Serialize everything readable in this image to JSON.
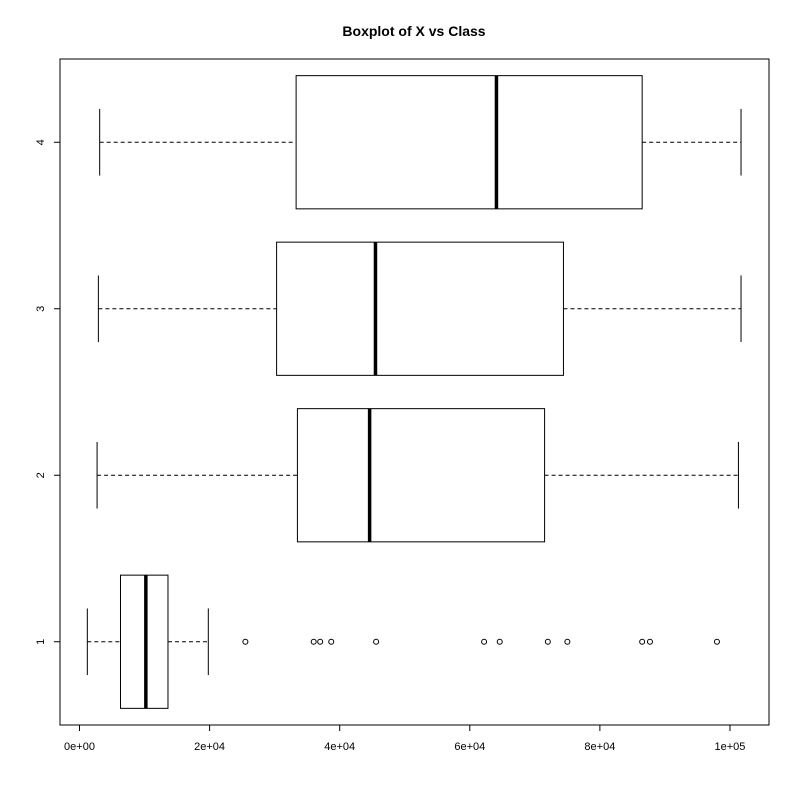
{
  "chart_data": {
    "type": "boxplot",
    "orientation": "horizontal",
    "title": "Boxplot of X vs Class",
    "xlabel": "",
    "ylabel": "",
    "xlim": [
      -3000,
      106000
    ],
    "ylim": [
      0.5,
      4.5
    ],
    "x_ticks": [
      0,
      20000,
      40000,
      60000,
      80000,
      100000
    ],
    "x_tick_labels": [
      "0e+00",
      "2e+04",
      "4e+04",
      "6e+04",
      "8e+04",
      "1e+05"
    ],
    "categories": [
      "1",
      "2",
      "3",
      "4"
    ],
    "boxes": [
      {
        "class": "1",
        "whisker_low": 1200,
        "q1": 6300,
        "median": 10200,
        "q3": 13600,
        "whisker_high": 19800,
        "outliers": [
          25500,
          36000,
          37000,
          38700,
          45600,
          62200,
          64600,
          72000,
          75000,
          86500,
          87700,
          98000
        ]
      },
      {
        "class": "2",
        "whisker_low": 2700,
        "q1": 33500,
        "median": 44600,
        "q3": 71500,
        "whisker_high": 101300,
        "outliers": []
      },
      {
        "class": "3",
        "whisker_low": 2900,
        "q1": 30300,
        "median": 45500,
        "q3": 74400,
        "whisker_high": 101700,
        "outliers": []
      },
      {
        "class": "4",
        "whisker_low": 3100,
        "q1": 33300,
        "median": 64100,
        "q3": 86500,
        "whisker_high": 101700,
        "outliers": []
      }
    ],
    "grid": false,
    "legend": "none"
  }
}
